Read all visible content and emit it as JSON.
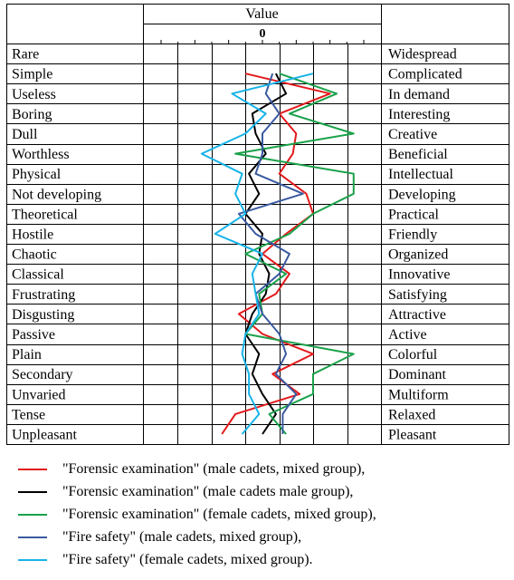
{
  "chart_data": {
    "type": "line",
    "header": "Value",
    "zero_label": "0",
    "x_range": [
      -3,
      3
    ],
    "left_labels": [
      "Rare",
      "Simple",
      "Useless",
      "Boring",
      "Dull",
      "Worthless",
      "Physical",
      "Not developing",
      "Theoretical",
      "Hostile",
      "Chaotic",
      "Classical",
      "Frustrating",
      "Disgusting",
      "Passive",
      "Plain",
      "Secondary",
      "Unvaried",
      "Tense",
      "Unpleasant"
    ],
    "right_labels": [
      "Widespread",
      "Complicated",
      "In demand",
      "Interesting",
      "Creative",
      "Beneficial",
      "Intellectual",
      "Developing",
      "Practical",
      "Friendly",
      "Organized",
      "Innovative",
      "Satisfying",
      "Attractive",
      "Active",
      "Colorful",
      "Dominant",
      "Multiform",
      "Relaxed",
      "Pleasant"
    ],
    "series": [
      {
        "name": "\"Forensic examination\" (male cadets, mixed group),",
        "color": "#e31a1c",
        "values": [
          null,
          -0.5,
          2.0,
          0.5,
          1.0,
          0.9,
          0.5,
          1.3,
          1.5,
          0.7,
          0.0,
          0.8,
          0.4,
          -0.7,
          0.0,
          1.5,
          0.3,
          1.1,
          -0.8,
          -1.2
        ]
      },
      {
        "name": "\"Forensic examination\" (male cadets male group),",
        "color": "#000000",
        "values": [
          null,
          0.4,
          0.7,
          -0.3,
          -0.2,
          0.1,
          -0.4,
          -0.1,
          -0.5,
          0.0,
          -0.1,
          0.2,
          0.1,
          -0.3,
          -0.5,
          -0.1,
          -0.3,
          0.0,
          0.4,
          0.0
        ]
      },
      {
        "name": "\"Forensic examination\" (female cadets, mixed group),",
        "color": "#1aa14a",
        "values": [
          null,
          0.5,
          2.2,
          0.8,
          2.7,
          -0.8,
          2.7,
          2.7,
          1.5,
          0.8,
          -0.5,
          0.7,
          -0.1,
          0.0,
          -0.5,
          2.7,
          1.5,
          1.5,
          0.2,
          0.7
        ]
      },
      {
        "name": "\"Fire safety\" (male cadets, mixed group),",
        "color": "#3a5aa0",
        "values": [
          null,
          0.3,
          0.1,
          0.5,
          0.0,
          0.0,
          -0.2,
          1.2,
          -0.7,
          -0.2,
          0.8,
          0.5,
          -0.2,
          0.0,
          0.5,
          0.7,
          0.4,
          1.0,
          0.6,
          0.6
        ]
      },
      {
        "name": "\"Fire safety\" (female cadets, mixed group).",
        "color": "#17b3e8",
        "values": [
          null,
          1.5,
          -0.9,
          0.1,
          -0.5,
          -1.8,
          -0.6,
          -0.8,
          -0.5,
          -1.4,
          0.0,
          -0.3,
          -0.2,
          -0.1,
          -0.5,
          -0.6,
          -0.4,
          -0.4,
          -0.1,
          -0.6
        ]
      }
    ]
  }
}
